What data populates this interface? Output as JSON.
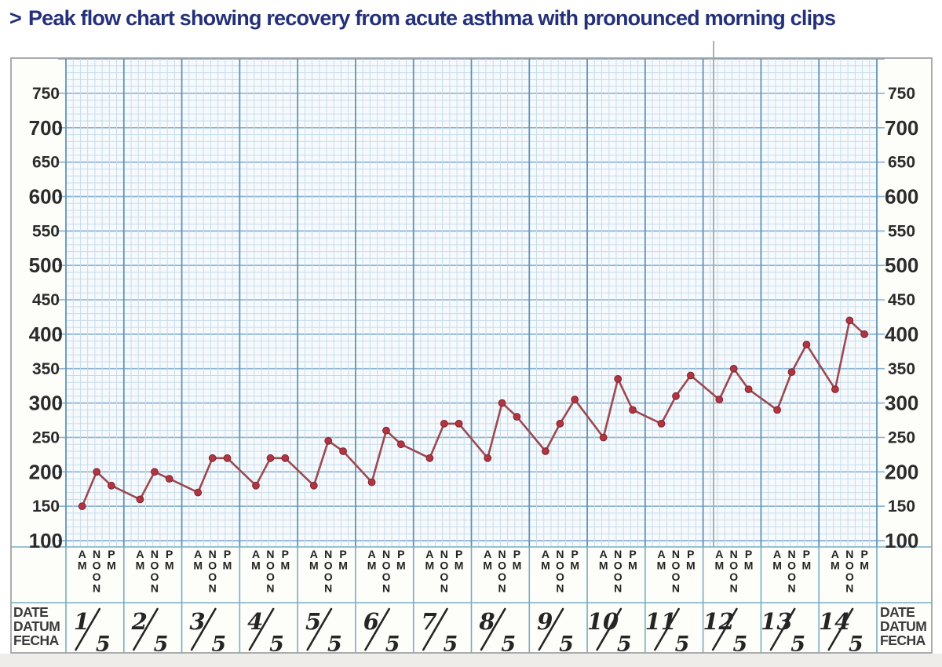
{
  "title": {
    "prefix": ">",
    "text": "Peak flow chart showing recovery from acute asthma with pronounced morning clips"
  },
  "date_block": {
    "lines": [
      "DATE",
      "DATUM",
      "FECHA"
    ]
  },
  "colors": {
    "title_text": "#243178",
    "grid_bg": "#f7fafd",
    "paper_bg": "#fdfdfa",
    "grid_fine": "#c7dcec",
    "grid_bold": "#8cb3d2",
    "day_line": "#5f94ba",
    "row_border": "#79adc1",
    "outer_border": "#9b9fa3",
    "fold_line": "#b0afaa",
    "axis_text": "#2b2b2b",
    "header_text": "#222222",
    "handwriting": "#252525",
    "series_line": "#9b4a50",
    "point_fill": "#b03540",
    "point_stroke": "#7e2531"
  },
  "chart_data": {
    "type": "line",
    "title": "Peak flow chart showing recovery from acute asthma with pronounced morning clips",
    "categories": [
      "1/5",
      "2/5",
      "3/5",
      "4/5",
      "5/5",
      "6/5",
      "7/5",
      "8/5",
      "9/5",
      "10/5",
      "11/5",
      "12/5",
      "13/5",
      "14/5"
    ],
    "readings_per_day": [
      "AM",
      "NOON",
      "PM"
    ],
    "series": [
      {
        "name": "Peak flow",
        "values_by_day": [
          [
            150,
            200,
            180
          ],
          [
            160,
            200,
            190
          ],
          [
            170,
            220,
            220
          ],
          [
            180,
            220,
            220
          ],
          [
            180,
            245,
            230
          ],
          [
            185,
            260,
            240
          ],
          [
            220,
            270,
            270
          ],
          [
            220,
            300,
            280
          ],
          [
            230,
            270,
            305
          ],
          [
            250,
            335,
            290
          ],
          [
            270,
            310,
            340
          ],
          [
            305,
            350,
            320
          ],
          [
            290,
            345,
            385
          ],
          [
            320,
            420,
            400
          ]
        ]
      }
    ],
    "ylim": [
      90,
      810
    ],
    "yticks": [
      100,
      150,
      200,
      250,
      300,
      350,
      400,
      450,
      500,
      550,
      600,
      650,
      700,
      750
    ],
    "ytick_bold_multiple": 100,
    "grid": "graph-paper (10-unit fine lines, bold every 50)",
    "legend": "none",
    "axis_sides": "labels on left and right"
  }
}
